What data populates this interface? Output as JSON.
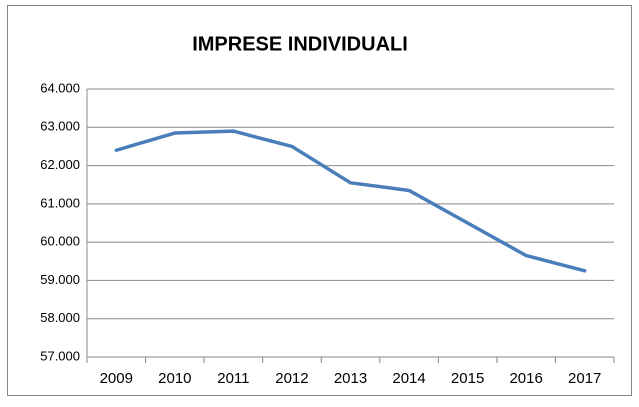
{
  "chart_data": {
    "type": "line",
    "title": "IMPRESE INDIVIDUALI",
    "categories": [
      "2009",
      "2010",
      "2011",
      "2012",
      "2013",
      "2014",
      "2015",
      "2016",
      "2017"
    ],
    "series": [
      {
        "color": "#4a7ebb",
        "values": [
          62400,
          62850,
          62900,
          62500,
          61550,
          61350,
          60500,
          59650,
          59250
        ]
      }
    ],
    "ylim": [
      57000,
      64000
    ],
    "yticks": [
      {
        "value": 57000,
        "label": "57.000"
      },
      {
        "value": 58000,
        "label": "58.000"
      },
      {
        "value": 59000,
        "label": "59.000"
      },
      {
        "value": 60000,
        "label": "60.000"
      },
      {
        "value": 61000,
        "label": "61.000"
      },
      {
        "value": 62000,
        "label": "62.000"
      },
      {
        "value": 63000,
        "label": "63.000"
      },
      {
        "value": 64000,
        "label": "64.000"
      }
    ],
    "grid": true
  }
}
